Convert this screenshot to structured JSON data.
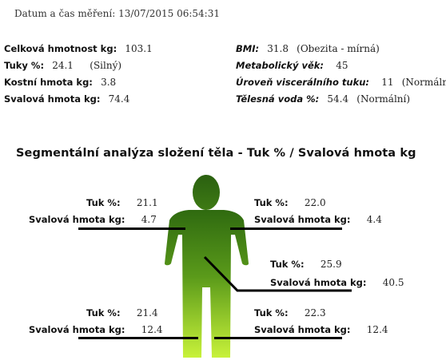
{
  "measurement": {
    "label": "Datum a čas měření:",
    "value": "13/07/2015 06:54:31"
  },
  "stats_left": [
    {
      "label": "Celková hmotnost kg:",
      "value": "103.1",
      "note": ""
    },
    {
      "label": "Tuky %:",
      "value": "24.1",
      "note": "(Silný)"
    },
    {
      "label": "Kostní hmota kg:",
      "value": "3.8",
      "note": ""
    },
    {
      "label": "Svalová hmota kg:",
      "value": "74.4",
      "note": ""
    }
  ],
  "stats_right": [
    {
      "label": "BMI:",
      "value": "31.8",
      "note": "(Obezita - mírná)"
    },
    {
      "label": "Metabolický věk:",
      "value": "45",
      "note": ""
    },
    {
      "label": "Úroveň viscerálního tuku:",
      "value": "11",
      "note": "(Normální)"
    },
    {
      "label": "Tělesná voda %:",
      "value": "54.4",
      "note": "(Normální)"
    }
  ],
  "segmental": {
    "title": "Segmentální analýza složení těla - Tuk % / Svalová hmota kg",
    "fat_label": "Tuk %:",
    "muscle_label": "Svalová hmota kg:",
    "segments": [
      {
        "name": "right-arm",
        "fat": "21.1",
        "muscle": "4.7"
      },
      {
        "name": "left-arm",
        "fat": "22.0",
        "muscle": "4.4"
      },
      {
        "name": "trunk",
        "fat": "25.9",
        "muscle": "40.5"
      },
      {
        "name": "right-leg",
        "fat": "21.4",
        "muscle": "12.4"
      },
      {
        "name": "left-leg",
        "fat": "22.3",
        "muscle": "12.4"
      }
    ]
  },
  "colors": {
    "figure_top": "#2f6a10",
    "figure_bottom": "#c4f030",
    "connector": "#000000"
  }
}
